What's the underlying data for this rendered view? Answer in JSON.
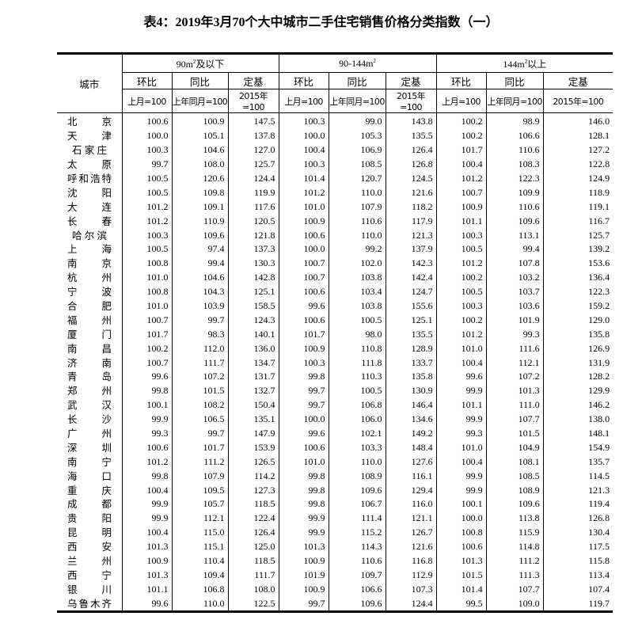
{
  "title": "表4：2019年3月70个大中城市二手住宅销售价格分类指数（一）",
  "header": {
    "city_label": "城市",
    "groups": [
      {
        "label_pre": "90m",
        "sup": "2",
        "label_post": "及以下"
      },
      {
        "label_pre": "90-144m",
        "sup": "2",
        "label_post": ""
      },
      {
        "label_pre": "144m",
        "sup": "2",
        "label_post": "以上"
      }
    ],
    "metrics": [
      "环比",
      "同比",
      "定基"
    ],
    "bases": [
      "上月=100",
      "上年同月=100",
      "2015年=100"
    ]
  },
  "rows": [
    {
      "city": "北京",
      "v": [
        "100.6",
        "100.9",
        "147.5",
        "100.3",
        "99.0",
        "143.8",
        "100.2",
        "98.9",
        "146.0"
      ]
    },
    {
      "city": "天津",
      "v": [
        "100.0",
        "105.1",
        "137.8",
        "100.0",
        "105.3",
        "135.5",
        "100.2",
        "106.6",
        "128.1"
      ]
    },
    {
      "city": "石家庄",
      "v": [
        "100.3",
        "104.6",
        "127.0",
        "100.4",
        "106.9",
        "126.4",
        "101.7",
        "110.6",
        "127.2"
      ]
    },
    {
      "city": "太原",
      "v": [
        "99.7",
        "108.0",
        "125.7",
        "100.3",
        "108.5",
        "126.8",
        "100.4",
        "108.3",
        "122.8"
      ]
    },
    {
      "city": "呼和浩特",
      "v": [
        "100.5",
        "120.6",
        "124.4",
        "101.4",
        "120.7",
        "124.5",
        "101.2",
        "122.3",
        "124.9"
      ]
    },
    {
      "city": "沈阳",
      "v": [
        "100.5",
        "109.8",
        "119.9",
        "101.2",
        "110.0",
        "121.6",
        "100.7",
        "109.9",
        "118.9"
      ]
    },
    {
      "city": "大连",
      "v": [
        "101.2",
        "109.1",
        "117.6",
        "101.0",
        "107.9",
        "118.2",
        "100.9",
        "110.6",
        "119.1"
      ]
    },
    {
      "city": "长春",
      "v": [
        "101.2",
        "110.9",
        "120.5",
        "100.9",
        "110.6",
        "117.9",
        "101.1",
        "109.6",
        "116.7"
      ]
    },
    {
      "city": "哈尔滨",
      "v": [
        "100.3",
        "109.6",
        "121.8",
        "100.6",
        "110.0",
        "121.3",
        "100.3",
        "113.1",
        "125.7"
      ]
    },
    {
      "city": "上海",
      "v": [
        "100.5",
        "97.4",
        "137.3",
        "100.0",
        "99.2",
        "137.9",
        "100.5",
        "99.4",
        "139.2"
      ]
    },
    {
      "city": "南京",
      "v": [
        "100.8",
        "99.4",
        "130.3",
        "100.7",
        "102.0",
        "142.3",
        "101.2",
        "107.8",
        "153.6"
      ]
    },
    {
      "city": "杭州",
      "v": [
        "101.0",
        "104.6",
        "142.8",
        "100.7",
        "103.8",
        "142.4",
        "100.2",
        "103.2",
        "136.4"
      ]
    },
    {
      "city": "宁波",
      "v": [
        "100.8",
        "104.3",
        "125.1",
        "100.6",
        "103.4",
        "124.7",
        "100.5",
        "103.7",
        "122.3"
      ]
    },
    {
      "city": "合肥",
      "v": [
        "101.0",
        "103.9",
        "158.5",
        "99.6",
        "103.8",
        "155.6",
        "100.3",
        "103.6",
        "159.2"
      ]
    },
    {
      "city": "福州",
      "v": [
        "100.7",
        "99.7",
        "124.3",
        "100.6",
        "100.5",
        "125.1",
        "100.2",
        "101.9",
        "129.0"
      ]
    },
    {
      "city": "厦门",
      "v": [
        "101.7",
        "98.3",
        "140.1",
        "101.7",
        "98.0",
        "135.5",
        "101.2",
        "99.3",
        "135.8"
      ]
    },
    {
      "city": "南昌",
      "v": [
        "100.2",
        "112.0",
        "136.0",
        "100.9",
        "110.8",
        "128.9",
        "101.0",
        "111.6",
        "126.9"
      ]
    },
    {
      "city": "济南",
      "v": [
        "100.7",
        "111.7",
        "134.7",
        "100.3",
        "111.8",
        "133.7",
        "100.4",
        "112.1",
        "131.9"
      ]
    },
    {
      "city": "青岛",
      "v": [
        "99.6",
        "107.2",
        "131.7",
        "99.8",
        "110.3",
        "135.8",
        "99.6",
        "107.2",
        "128.2"
      ]
    },
    {
      "city": "郑州",
      "v": [
        "99.8",
        "101.5",
        "132.7",
        "99.7",
        "100.5",
        "130.9",
        "99.9",
        "101.3",
        "129.9"
      ]
    },
    {
      "city": "武汉",
      "v": [
        "100.1",
        "108.2",
        "150.4",
        "99.7",
        "106.8",
        "146.4",
        "101.1",
        "111.0",
        "146.2"
      ]
    },
    {
      "city": "长沙",
      "v": [
        "99.9",
        "106.5",
        "135.1",
        "100.0",
        "106.0",
        "134.6",
        "99.9",
        "107.7",
        "138.0"
      ]
    },
    {
      "city": "广州",
      "v": [
        "99.3",
        "99.7",
        "147.9",
        "99.6",
        "102.1",
        "149.2",
        "99.3",
        "101.5",
        "148.1"
      ]
    },
    {
      "city": "深圳",
      "v": [
        "100.6",
        "101.7",
        "153.9",
        "100.6",
        "103.3",
        "148.4",
        "101.0",
        "104.9",
        "154.9"
      ]
    },
    {
      "city": "南宁",
      "v": [
        "101.2",
        "111.2",
        "126.5",
        "101.0",
        "110.0",
        "127.6",
        "100.4",
        "108.1",
        "135.7"
      ]
    },
    {
      "city": "海口",
      "v": [
        "99.8",
        "107.9",
        "114.2",
        "99.8",
        "108.9",
        "116.1",
        "99.9",
        "108.5",
        "114.5"
      ]
    },
    {
      "city": "重庆",
      "v": [
        "100.4",
        "109.5",
        "127.3",
        "99.8",
        "109.6",
        "129.4",
        "99.9",
        "108.9",
        "121.3"
      ]
    },
    {
      "city": "成都",
      "v": [
        "99.9",
        "105.7",
        "118.5",
        "99.8",
        "106.7",
        "116.0",
        "100.1",
        "109.6",
        "119.4"
      ]
    },
    {
      "city": "贵阳",
      "v": [
        "99.9",
        "112.1",
        "122.4",
        "99.9",
        "111.4",
        "121.1",
        "100.0",
        "113.8",
        "126.8"
      ]
    },
    {
      "city": "昆明",
      "v": [
        "100.4",
        "115.0",
        "126.4",
        "99.9",
        "115.2",
        "126.7",
        "100.8",
        "115.9",
        "130.4"
      ]
    },
    {
      "city": "西安",
      "v": [
        "101.3",
        "115.1",
        "125.0",
        "101.3",
        "114.3",
        "121.6",
        "100.6",
        "114.8",
        "117.5"
      ]
    },
    {
      "city": "兰州",
      "v": [
        "100.9",
        "110.4",
        "118.5",
        "100.9",
        "110.6",
        "116.8",
        "101.3",
        "111.2",
        "115.8"
      ]
    },
    {
      "city": "西宁",
      "v": [
        "101.3",
        "109.4",
        "111.7",
        "101.9",
        "109.7",
        "112.9",
        "101.5",
        "111.3",
        "113.4"
      ]
    },
    {
      "city": "银川",
      "v": [
        "101.1",
        "106.8",
        "108.0",
        "100.9",
        "106.6",
        "107.3",
        "101.4",
        "107.7",
        "107.4"
      ]
    },
    {
      "city": "乌鲁木齐",
      "v": [
        "99.6",
        "110.0",
        "122.5",
        "99.7",
        "109.6",
        "124.4",
        "99.5",
        "109.0",
        "119.7"
      ]
    }
  ]
}
